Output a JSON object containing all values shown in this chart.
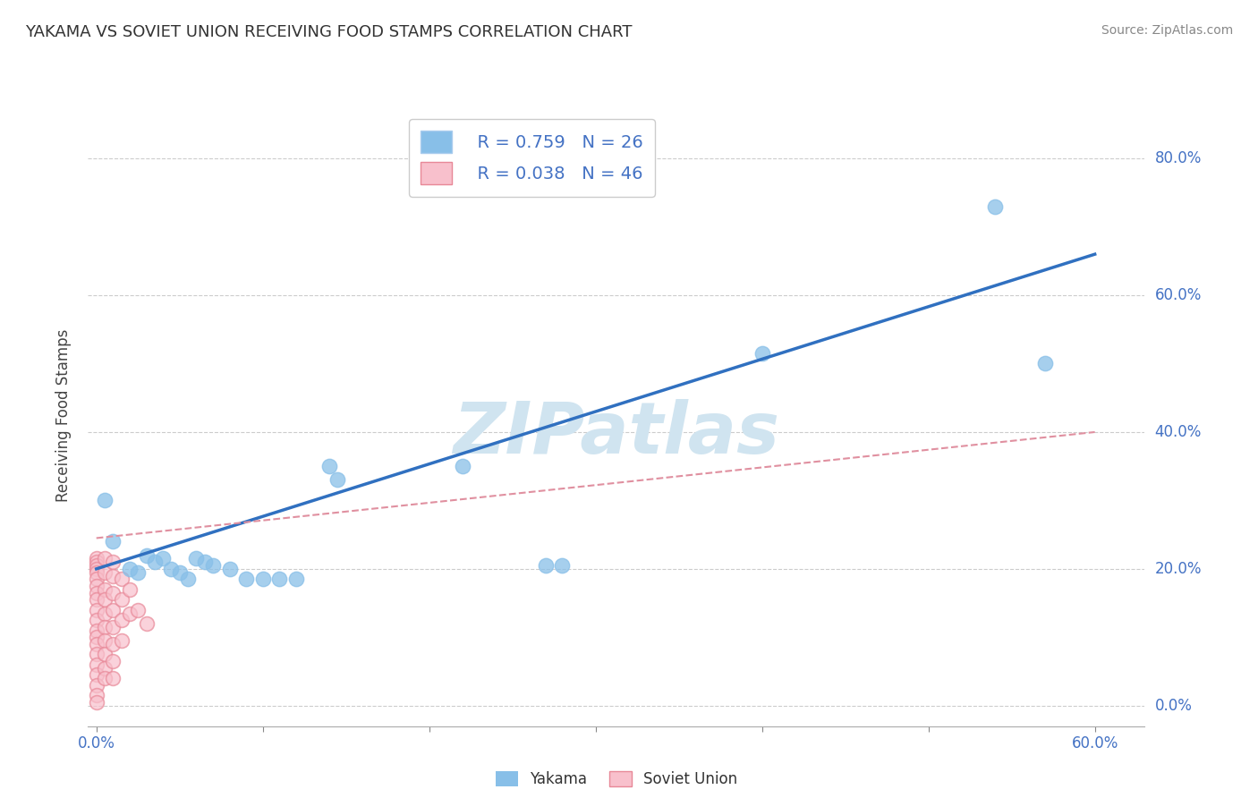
{
  "title": "YAKAMA VS SOVIET UNION RECEIVING FOOD STAMPS CORRELATION CHART",
  "source": "Source: ZipAtlas.com",
  "ylabel": "Receiving Food Stamps",
  "x_ticks": [
    0.0,
    0.1,
    0.2,
    0.3,
    0.4,
    0.5,
    0.6
  ],
  "x_tick_labels": [
    "0.0%",
    "",
    "",
    "",
    "",
    "",
    "60.0%"
  ],
  "y_ticks": [
    0.0,
    0.2,
    0.4,
    0.6,
    0.8
  ],
  "y_tick_labels_right": [
    "0.0%",
    "20.0%",
    "40.0%",
    "60.0%",
    "80.0%"
  ],
  "xlim": [
    -0.005,
    0.63
  ],
  "ylim": [
    -0.03,
    0.88
  ],
  "yakama_color": "#88bfe8",
  "soviet_color_fill": "#f8c0cc",
  "soviet_color_edge": "#e88898",
  "yakama_R": 0.759,
  "yakama_N": 26,
  "soviet_R": 0.038,
  "soviet_N": 46,
  "watermark": "ZIPatlas",
  "watermark_color": "#d0e4f0",
  "background_color": "#ffffff",
  "grid_color": "#cccccc",
  "legend_R_color": "#4472c4",
  "blue_line_color": "#3070c0",
  "pink_line_color": "#e090a0",
  "yakama_scatter": [
    [
      0.005,
      0.3
    ],
    [
      0.01,
      0.24
    ],
    [
      0.02,
      0.2
    ],
    [
      0.025,
      0.195
    ],
    [
      0.03,
      0.22
    ],
    [
      0.035,
      0.21
    ],
    [
      0.04,
      0.215
    ],
    [
      0.045,
      0.2
    ],
    [
      0.05,
      0.195
    ],
    [
      0.055,
      0.185
    ],
    [
      0.06,
      0.215
    ],
    [
      0.065,
      0.21
    ],
    [
      0.07,
      0.205
    ],
    [
      0.08,
      0.2
    ],
    [
      0.09,
      0.185
    ],
    [
      0.1,
      0.185
    ],
    [
      0.11,
      0.185
    ],
    [
      0.12,
      0.185
    ],
    [
      0.14,
      0.35
    ],
    [
      0.145,
      0.33
    ],
    [
      0.22,
      0.35
    ],
    [
      0.27,
      0.205
    ],
    [
      0.28,
      0.205
    ],
    [
      0.4,
      0.515
    ],
    [
      0.54,
      0.73
    ],
    [
      0.57,
      0.5
    ]
  ],
  "soviet_scatter": [
    [
      0.0,
      0.215
    ],
    [
      0.0,
      0.21
    ],
    [
      0.0,
      0.205
    ],
    [
      0.0,
      0.2
    ],
    [
      0.0,
      0.195
    ],
    [
      0.0,
      0.185
    ],
    [
      0.0,
      0.175
    ],
    [
      0.0,
      0.165
    ],
    [
      0.0,
      0.155
    ],
    [
      0.0,
      0.14
    ],
    [
      0.0,
      0.125
    ],
    [
      0.0,
      0.11
    ],
    [
      0.0,
      0.1
    ],
    [
      0.0,
      0.09
    ],
    [
      0.0,
      0.075
    ],
    [
      0.0,
      0.06
    ],
    [
      0.0,
      0.045
    ],
    [
      0.0,
      0.03
    ],
    [
      0.0,
      0.015
    ],
    [
      0.0,
      0.005
    ],
    [
      0.005,
      0.215
    ],
    [
      0.005,
      0.195
    ],
    [
      0.005,
      0.17
    ],
    [
      0.005,
      0.155
    ],
    [
      0.005,
      0.135
    ],
    [
      0.005,
      0.115
    ],
    [
      0.005,
      0.095
    ],
    [
      0.005,
      0.075
    ],
    [
      0.005,
      0.055
    ],
    [
      0.005,
      0.04
    ],
    [
      0.01,
      0.21
    ],
    [
      0.01,
      0.19
    ],
    [
      0.01,
      0.165
    ],
    [
      0.01,
      0.14
    ],
    [
      0.01,
      0.115
    ],
    [
      0.01,
      0.09
    ],
    [
      0.01,
      0.065
    ],
    [
      0.01,
      0.04
    ],
    [
      0.015,
      0.185
    ],
    [
      0.015,
      0.155
    ],
    [
      0.015,
      0.125
    ],
    [
      0.015,
      0.095
    ],
    [
      0.02,
      0.17
    ],
    [
      0.02,
      0.135
    ],
    [
      0.025,
      0.14
    ],
    [
      0.03,
      0.12
    ]
  ]
}
